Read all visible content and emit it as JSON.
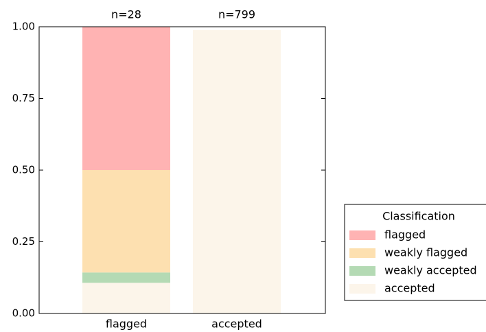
{
  "chart_data": {
    "type": "stacked_bar",
    "categories": [
      "flagged",
      "accepted"
    ],
    "annotations": [
      "n=28",
      "n=799"
    ],
    "series": [
      {
        "name": "flagged",
        "color": "#ffb3b3",
        "values": [
          0.5,
          0
        ]
      },
      {
        "name": "weakly flagged",
        "color": "#fde0b0",
        "values": [
          0.357,
          0
        ]
      },
      {
        "name": "weakly accepted",
        "color": "#b4dab4",
        "values": [
          0.036,
          0
        ]
      },
      {
        "name": "accepted",
        "color": "#fcf5ea",
        "values": [
          0.107,
          0.988
        ]
      }
    ],
    "legend_title": "Classification",
    "ylim": [
      0,
      1
    ],
    "yticks": [
      {
        "value": 0,
        "label": "0.00"
      },
      {
        "value": 0.25,
        "label": "0.25"
      },
      {
        "value": 0.5,
        "label": "0.50"
      },
      {
        "value": 0.75,
        "label": "0.75"
      },
      {
        "value": 1,
        "label": "1.00"
      }
    ],
    "legend_position": "right"
  }
}
